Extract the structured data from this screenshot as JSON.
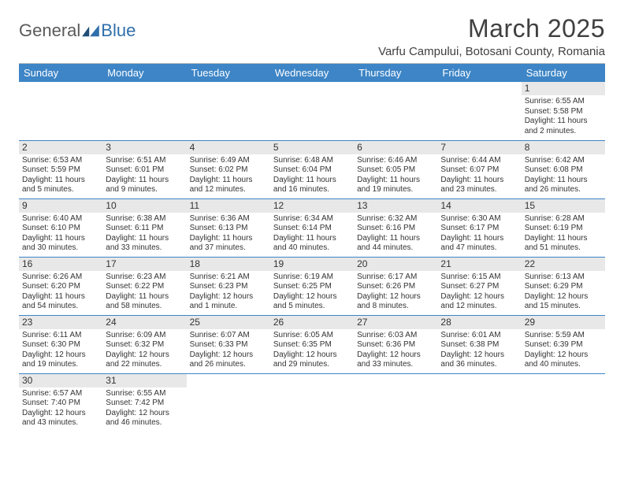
{
  "brand": {
    "part1": "General",
    "part2": "Blue"
  },
  "title": "March 2025",
  "location": "Varfu Campului, Botosani County, Romania",
  "colors": {
    "header_bg": "#3d85c6",
    "header_fg": "#ffffff",
    "daynum_bg": "#e8e8e8",
    "rule": "#3d85c6",
    "logo_accent": "#2f6fab"
  },
  "weekdays": [
    "Sunday",
    "Monday",
    "Tuesday",
    "Wednesday",
    "Thursday",
    "Friday",
    "Saturday"
  ],
  "weeks": [
    [
      null,
      null,
      null,
      null,
      null,
      null,
      {
        "n": "1",
        "sr": "Sunrise: 6:55 AM",
        "ss": "Sunset: 5:58 PM",
        "d1": "Daylight: 11 hours",
        "d2": "and 2 minutes."
      }
    ],
    [
      {
        "n": "2",
        "sr": "Sunrise: 6:53 AM",
        "ss": "Sunset: 5:59 PM",
        "d1": "Daylight: 11 hours",
        "d2": "and 5 minutes."
      },
      {
        "n": "3",
        "sr": "Sunrise: 6:51 AM",
        "ss": "Sunset: 6:01 PM",
        "d1": "Daylight: 11 hours",
        "d2": "and 9 minutes."
      },
      {
        "n": "4",
        "sr": "Sunrise: 6:49 AM",
        "ss": "Sunset: 6:02 PM",
        "d1": "Daylight: 11 hours",
        "d2": "and 12 minutes."
      },
      {
        "n": "5",
        "sr": "Sunrise: 6:48 AM",
        "ss": "Sunset: 6:04 PM",
        "d1": "Daylight: 11 hours",
        "d2": "and 16 minutes."
      },
      {
        "n": "6",
        "sr": "Sunrise: 6:46 AM",
        "ss": "Sunset: 6:05 PM",
        "d1": "Daylight: 11 hours",
        "d2": "and 19 minutes."
      },
      {
        "n": "7",
        "sr": "Sunrise: 6:44 AM",
        "ss": "Sunset: 6:07 PM",
        "d1": "Daylight: 11 hours",
        "d2": "and 23 minutes."
      },
      {
        "n": "8",
        "sr": "Sunrise: 6:42 AM",
        "ss": "Sunset: 6:08 PM",
        "d1": "Daylight: 11 hours",
        "d2": "and 26 minutes."
      }
    ],
    [
      {
        "n": "9",
        "sr": "Sunrise: 6:40 AM",
        "ss": "Sunset: 6:10 PM",
        "d1": "Daylight: 11 hours",
        "d2": "and 30 minutes."
      },
      {
        "n": "10",
        "sr": "Sunrise: 6:38 AM",
        "ss": "Sunset: 6:11 PM",
        "d1": "Daylight: 11 hours",
        "d2": "and 33 minutes."
      },
      {
        "n": "11",
        "sr": "Sunrise: 6:36 AM",
        "ss": "Sunset: 6:13 PM",
        "d1": "Daylight: 11 hours",
        "d2": "and 37 minutes."
      },
      {
        "n": "12",
        "sr": "Sunrise: 6:34 AM",
        "ss": "Sunset: 6:14 PM",
        "d1": "Daylight: 11 hours",
        "d2": "and 40 minutes."
      },
      {
        "n": "13",
        "sr": "Sunrise: 6:32 AM",
        "ss": "Sunset: 6:16 PM",
        "d1": "Daylight: 11 hours",
        "d2": "and 44 minutes."
      },
      {
        "n": "14",
        "sr": "Sunrise: 6:30 AM",
        "ss": "Sunset: 6:17 PM",
        "d1": "Daylight: 11 hours",
        "d2": "and 47 minutes."
      },
      {
        "n": "15",
        "sr": "Sunrise: 6:28 AM",
        "ss": "Sunset: 6:19 PM",
        "d1": "Daylight: 11 hours",
        "d2": "and 51 minutes."
      }
    ],
    [
      {
        "n": "16",
        "sr": "Sunrise: 6:26 AM",
        "ss": "Sunset: 6:20 PM",
        "d1": "Daylight: 11 hours",
        "d2": "and 54 minutes."
      },
      {
        "n": "17",
        "sr": "Sunrise: 6:23 AM",
        "ss": "Sunset: 6:22 PM",
        "d1": "Daylight: 11 hours",
        "d2": "and 58 minutes."
      },
      {
        "n": "18",
        "sr": "Sunrise: 6:21 AM",
        "ss": "Sunset: 6:23 PM",
        "d1": "Daylight: 12 hours",
        "d2": "and 1 minute."
      },
      {
        "n": "19",
        "sr": "Sunrise: 6:19 AM",
        "ss": "Sunset: 6:25 PM",
        "d1": "Daylight: 12 hours",
        "d2": "and 5 minutes."
      },
      {
        "n": "20",
        "sr": "Sunrise: 6:17 AM",
        "ss": "Sunset: 6:26 PM",
        "d1": "Daylight: 12 hours",
        "d2": "and 8 minutes."
      },
      {
        "n": "21",
        "sr": "Sunrise: 6:15 AM",
        "ss": "Sunset: 6:27 PM",
        "d1": "Daylight: 12 hours",
        "d2": "and 12 minutes."
      },
      {
        "n": "22",
        "sr": "Sunrise: 6:13 AM",
        "ss": "Sunset: 6:29 PM",
        "d1": "Daylight: 12 hours",
        "d2": "and 15 minutes."
      }
    ],
    [
      {
        "n": "23",
        "sr": "Sunrise: 6:11 AM",
        "ss": "Sunset: 6:30 PM",
        "d1": "Daylight: 12 hours",
        "d2": "and 19 minutes."
      },
      {
        "n": "24",
        "sr": "Sunrise: 6:09 AM",
        "ss": "Sunset: 6:32 PM",
        "d1": "Daylight: 12 hours",
        "d2": "and 22 minutes."
      },
      {
        "n": "25",
        "sr": "Sunrise: 6:07 AM",
        "ss": "Sunset: 6:33 PM",
        "d1": "Daylight: 12 hours",
        "d2": "and 26 minutes."
      },
      {
        "n": "26",
        "sr": "Sunrise: 6:05 AM",
        "ss": "Sunset: 6:35 PM",
        "d1": "Daylight: 12 hours",
        "d2": "and 29 minutes."
      },
      {
        "n": "27",
        "sr": "Sunrise: 6:03 AM",
        "ss": "Sunset: 6:36 PM",
        "d1": "Daylight: 12 hours",
        "d2": "and 33 minutes."
      },
      {
        "n": "28",
        "sr": "Sunrise: 6:01 AM",
        "ss": "Sunset: 6:38 PM",
        "d1": "Daylight: 12 hours",
        "d2": "and 36 minutes."
      },
      {
        "n": "29",
        "sr": "Sunrise: 5:59 AM",
        "ss": "Sunset: 6:39 PM",
        "d1": "Daylight: 12 hours",
        "d2": "and 40 minutes."
      }
    ],
    [
      {
        "n": "30",
        "sr": "Sunrise: 6:57 AM",
        "ss": "Sunset: 7:40 PM",
        "d1": "Daylight: 12 hours",
        "d2": "and 43 minutes."
      },
      {
        "n": "31",
        "sr": "Sunrise: 6:55 AM",
        "ss": "Sunset: 7:42 PM",
        "d1": "Daylight: 12 hours",
        "d2": "and 46 minutes."
      },
      null,
      null,
      null,
      null,
      null
    ]
  ]
}
